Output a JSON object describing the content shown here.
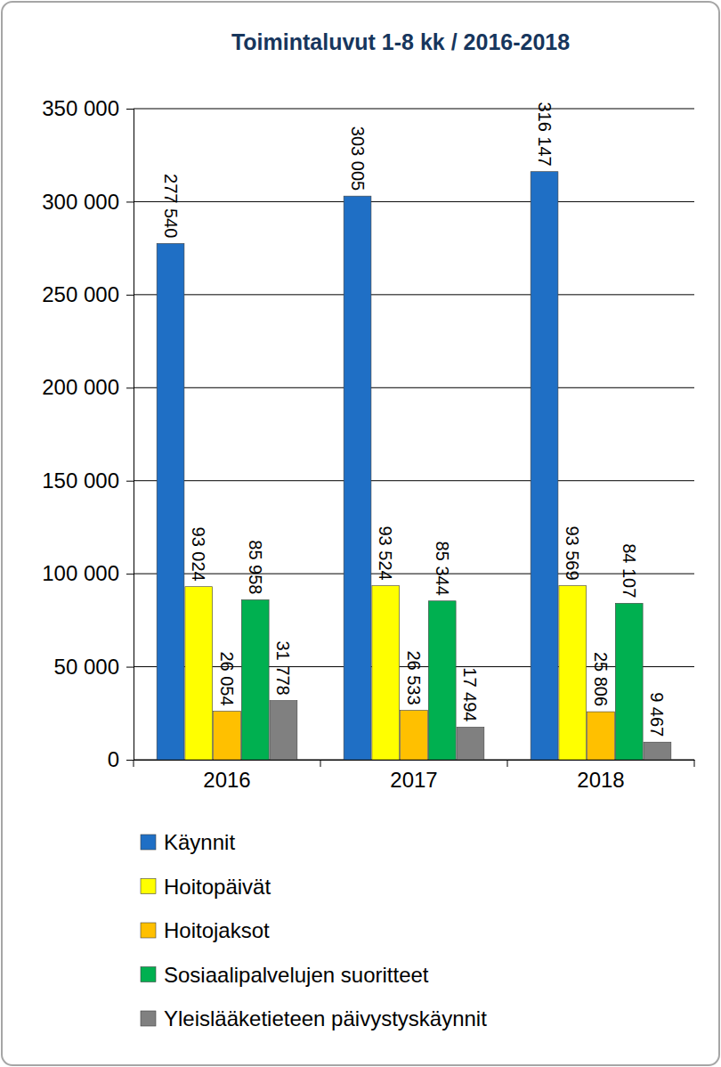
{
  "chart_data": {
    "type": "bar",
    "title": "Toimintaluvut 1-8 kk / 2016-2018",
    "categories": [
      "2016",
      "2017",
      "2018"
    ],
    "series": [
      {
        "name": "Käynnit",
        "color": "#1f6fc5",
        "values": [
          277540,
          303005,
          316147
        ],
        "value_labels": [
          "277 540",
          "303 005",
          "316 147"
        ]
      },
      {
        "name": "Hoitopäivät",
        "color": "#ffff00",
        "values": [
          93024,
          93524,
          93569
        ],
        "value_labels": [
          "93 024",
          "93 524",
          "93 569"
        ]
      },
      {
        "name": "Hoitojaksot",
        "color": "#ffc000",
        "values": [
          26054,
          26533,
          25806
        ],
        "value_labels": [
          "26 054",
          "26 533",
          "25 806"
        ]
      },
      {
        "name": "Sosiaalipalvelujen suoritteet",
        "color": "#00b050",
        "values": [
          85958,
          85344,
          84107
        ],
        "value_labels": [
          "85 958",
          "85 344",
          "84 107"
        ]
      },
      {
        "name": "Yleislääketieteen päivystyskäynnit",
        "color": "#808080",
        "values": [
          31778,
          17494,
          9467
        ],
        "value_labels": [
          "31 778",
          "17 494",
          "9 467"
        ]
      }
    ],
    "ylim": [
      0,
      350000
    ],
    "yticks": [
      0,
      {
        "value": 50000,
        "label": "50 000"
      },
      {
        "value": 100000,
        "label": "100 000"
      },
      {
        "value": 150000,
        "label": "150 000"
      },
      {
        "value": 200000,
        "label": "200 000"
      },
      {
        "value": 250000,
        "label": "250 000"
      },
      {
        "value": 300000,
        "label": "300 000"
      },
      {
        "value": 350000,
        "label": "350 000"
      }
    ],
    "grid": true,
    "data_labels": true,
    "legend": "bottom"
  }
}
